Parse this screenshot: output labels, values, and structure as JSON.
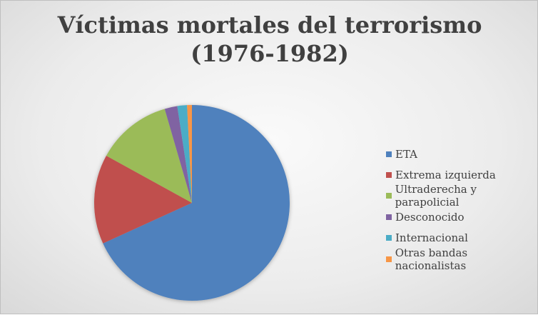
{
  "chart_data": {
    "type": "pie",
    "title_line1": "Víctimas mortales del terrorismo",
    "title_line2": "(1976-1982)",
    "categories": [
      "ETA",
      "Extrema izquierda",
      "Ultraderecha y parapolicial",
      "Desconocido",
      "Internacional",
      "Otras bandas nacionalistas"
    ],
    "values": [
      68.2,
      14.8,
      12.5,
      2.1,
      1.6,
      0.8
    ],
    "unit": "percent (estimated)",
    "colors": [
      "#4f81bd",
      "#c0504d",
      "#9bbb59",
      "#8064a2",
      "#4bacc6",
      "#f79646"
    ],
    "legend_position": "right",
    "start_angle": "top, clockwise"
  }
}
